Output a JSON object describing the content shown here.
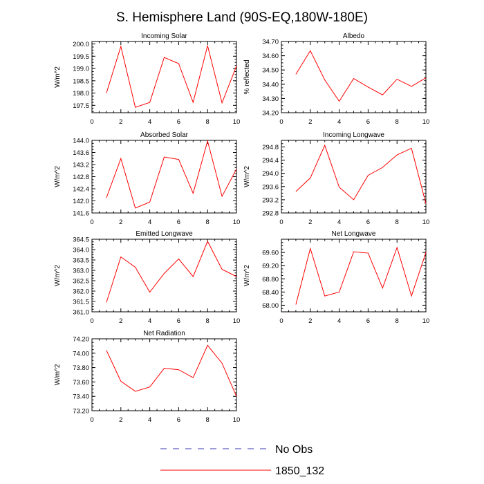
{
  "title": "S. Hemisphere Land (90S-EQ,180W-180E)",
  "legend": {
    "entries": [
      {
        "label": "No Obs",
        "color": "#3a3ab0",
        "dash": true
      },
      {
        "label": "1850_132",
        "color": "#ff0000",
        "dash": false
      }
    ],
    "placement": "bottom-center"
  },
  "chart_data": [
    {
      "type": "line",
      "title": "Incoming Solar",
      "ylabel": "W/m^2",
      "xlim": [
        0,
        10
      ],
      "ylim": [
        197.2,
        200.1
      ],
      "xticks": [
        "0",
        "2",
        "4",
        "6",
        "8",
        "10"
      ],
      "yticks": [
        "197.5",
        "198.0",
        "198.5",
        "199.0",
        "199.5",
        "200.0"
      ],
      "series": [
        {
          "color": "#ff0000",
          "x": [
            1,
            2,
            3,
            4,
            5,
            6,
            7,
            8,
            9,
            10
          ],
          "values": [
            198.0,
            199.9,
            197.42,
            197.62,
            199.45,
            199.2,
            197.62,
            199.93,
            197.6,
            199.1
          ]
        }
      ]
    },
    {
      "type": "line",
      "title": "Albedo",
      "ylabel": "% reflected",
      "xlim": [
        0,
        10
      ],
      "ylim": [
        34.2,
        34.7
      ],
      "xticks": [
        "0",
        "2",
        "4",
        "6",
        "8",
        "10"
      ],
      "yticks": [
        "34.20",
        "34.30",
        "34.40",
        "34.50",
        "34.60",
        "34.70"
      ],
      "series": [
        {
          "color": "#ff0000",
          "x": [
            1,
            2,
            3,
            4,
            5,
            6,
            7,
            8,
            9,
            10
          ],
          "values": [
            34.47,
            34.635,
            34.43,
            34.28,
            34.44,
            34.38,
            34.325,
            34.435,
            34.385,
            34.445
          ]
        }
      ]
    },
    {
      "type": "line",
      "title": "Absorbed Solar",
      "ylabel": "W/m^2",
      "xlim": [
        0,
        10
      ],
      "ylim": [
        141.6,
        144.0
      ],
      "xticks": [
        "0",
        "2",
        "4",
        "6",
        "8",
        "10"
      ],
      "yticks": [
        "141.6",
        "142.0",
        "142.4",
        "142.8",
        "143.2",
        "143.6",
        "144.0"
      ],
      "series": [
        {
          "color": "#ff0000",
          "x": [
            1,
            2,
            3,
            4,
            5,
            6,
            7,
            8,
            9,
            10
          ],
          "values": [
            142.1,
            143.4,
            141.76,
            141.96,
            143.45,
            143.37,
            142.25,
            143.98,
            142.15,
            143.05
          ]
        }
      ]
    },
    {
      "type": "line",
      "title": "Incoming Longwave",
      "ylabel": "W/m^2",
      "xlim": [
        0,
        10
      ],
      "ylim": [
        292.8,
        295.0
      ],
      "xticks": [
        "0",
        "2",
        "4",
        "6",
        "8",
        "10"
      ],
      "yticks": [
        "292.8",
        "293.2",
        "293.6",
        "294.0",
        "294.4",
        "294.8"
      ],
      "series": [
        {
          "color": "#ff0000",
          "x": [
            1,
            2,
            3,
            4,
            5,
            6,
            7,
            8,
            9,
            10
          ],
          "values": [
            293.45,
            293.86,
            294.85,
            293.58,
            293.2,
            293.94,
            294.18,
            294.56,
            294.76,
            293.08
          ]
        }
      ]
    },
    {
      "type": "line",
      "title": "Emitted Longwave",
      "ylabel": "W/m^2",
      "xlim": [
        0,
        10
      ],
      "ylim": [
        361.0,
        364.5
      ],
      "xticks": [
        "0",
        "2",
        "4",
        "6",
        "8",
        "10"
      ],
      "yticks": [
        "361.0",
        "361.5",
        "362.0",
        "362.5",
        "363.0",
        "363.5",
        "364.0",
        "364.5"
      ],
      "series": [
        {
          "color": "#ff0000",
          "x": [
            1,
            2,
            3,
            4,
            5,
            6,
            7,
            8,
            9,
            10
          ],
          "values": [
            361.45,
            363.65,
            363.15,
            361.95,
            362.85,
            363.55,
            362.7,
            364.4,
            363.05,
            362.7
          ]
        }
      ]
    },
    {
      "type": "line",
      "title": "Net Longwave",
      "ylabel": "W/m^2",
      "xlim": [
        0,
        10
      ],
      "ylim": [
        67.8,
        70.0
      ],
      "xticks": [
        "0",
        "2",
        "4",
        "6",
        "8",
        "10"
      ],
      "yticks": [
        "68.00",
        "68.40",
        "68.80",
        "69.20",
        "69.60"
      ],
      "series": [
        {
          "color": "#ff0000",
          "x": [
            1,
            2,
            3,
            4,
            5,
            6,
            7,
            8,
            9,
            10
          ],
          "values": [
            68.02,
            69.72,
            68.28,
            68.4,
            69.62,
            69.58,
            68.52,
            69.75,
            68.28,
            69.6
          ]
        }
      ]
    },
    {
      "type": "line",
      "title": "Net Radiation",
      "ylabel": "W/m^2",
      "xlim": [
        0,
        10
      ],
      "ylim": [
        73.2,
        74.2
      ],
      "xticks": [
        "0",
        "2",
        "4",
        "6",
        "8",
        "10"
      ],
      "yticks": [
        "73.20",
        "73.40",
        "73.60",
        "73.80",
        "74.00",
        "74.20"
      ],
      "series": [
        {
          "color": "#ff0000",
          "x": [
            1,
            2,
            3,
            4,
            5,
            6,
            7,
            8,
            9,
            10
          ],
          "values": [
            74.04,
            73.61,
            73.47,
            73.53,
            73.79,
            73.77,
            73.66,
            74.11,
            73.86,
            73.4
          ]
        }
      ]
    }
  ]
}
